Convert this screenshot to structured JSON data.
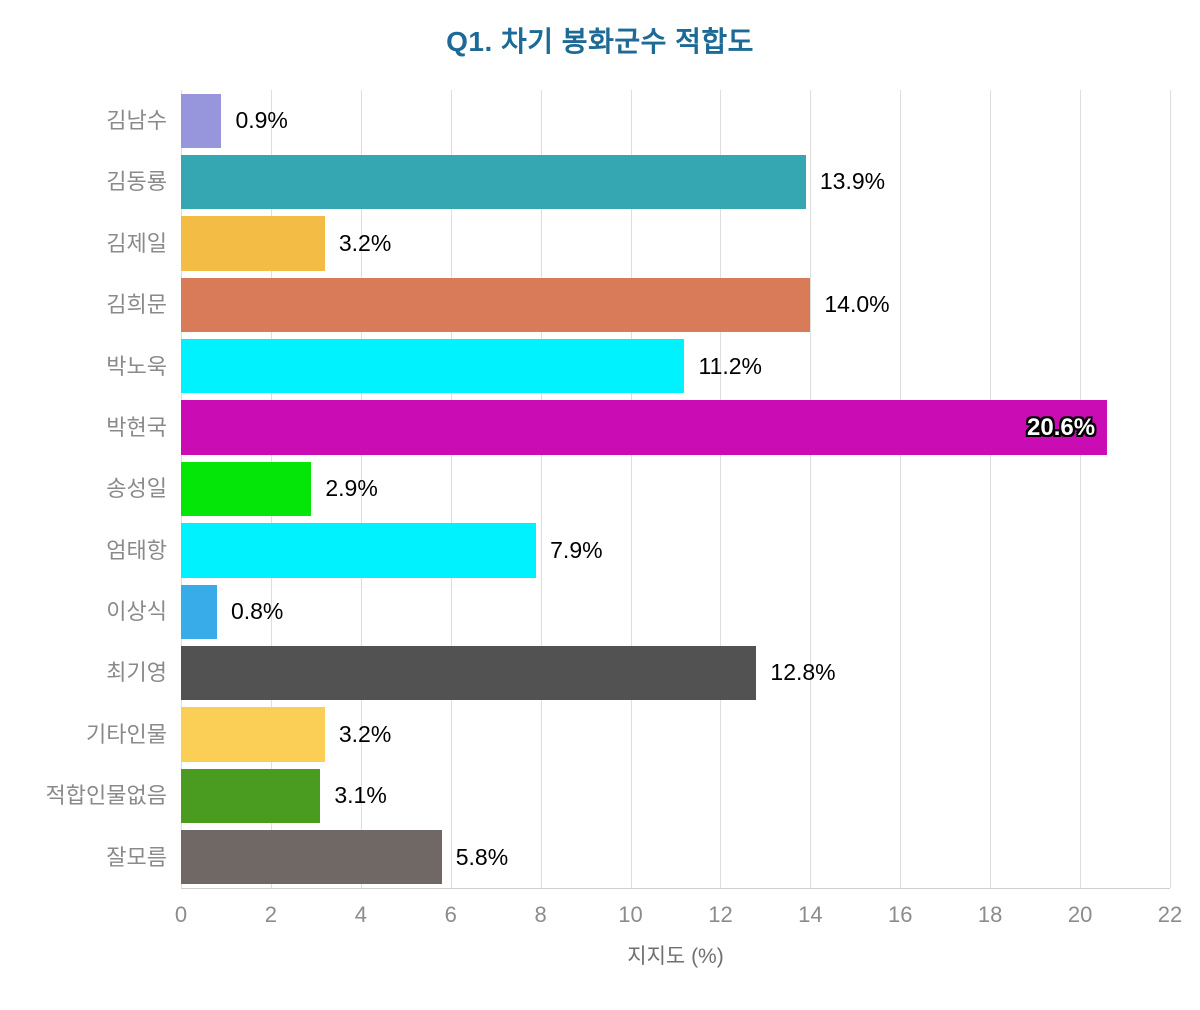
{
  "title": "Q1. 차기 봉화군수 적합도",
  "chart_data": {
    "type": "bar",
    "orientation": "horizontal",
    "title": "Q1. 차기 봉화군수 적합도",
    "xlabel": "지지도 (%)",
    "xlim": [
      0,
      22
    ],
    "xticks": [
      0,
      2,
      4,
      6,
      8,
      10,
      12,
      14,
      16,
      18,
      20,
      22
    ],
    "grid": true,
    "legend": false,
    "categories": [
      "김남수",
      "김동룡",
      "김제일",
      "김희문",
      "박노욱",
      "박현국",
      "송성일",
      "엄태항",
      "이상식",
      "최기영",
      "기타인물",
      "적합인물없음",
      "잘모름"
    ],
    "values": [
      0.9,
      13.9,
      3.2,
      14.0,
      11.2,
      20.6,
      2.9,
      7.9,
      0.8,
      12.8,
      3.2,
      3.1,
      5.8
    ],
    "value_labels": [
      "0.9%",
      "13.9%",
      "3.2%",
      "14.0%",
      "11.2%",
      "20.6%",
      "2.9%",
      "7.9%",
      "0.8%",
      "12.8%",
      "3.2%",
      "3.1%",
      "5.8%"
    ],
    "value_label_inside": [
      false,
      false,
      false,
      false,
      false,
      true,
      false,
      false,
      false,
      false,
      false,
      false,
      false
    ],
    "bar_colors": [
      "#9795dc",
      "#34a7b2",
      "#f3bd45",
      "#d97b58",
      "#00f2ff",
      "#c90cb4",
      "#04e607",
      "#00f2ff",
      "#38ace8",
      "#525252",
      "#fbcf55",
      "#4a9c20",
      "#6f6865"
    ]
  },
  "colors": {
    "title": "#1d6a96",
    "grid": "#dedede",
    "category_text": "#8a8a8a",
    "tick_text": "#8c8c8c",
    "axis_label_text": "#6f6f6f",
    "value_text": "#000000",
    "inside_value_text": "#ffffff",
    "background": "#ffffff"
  }
}
